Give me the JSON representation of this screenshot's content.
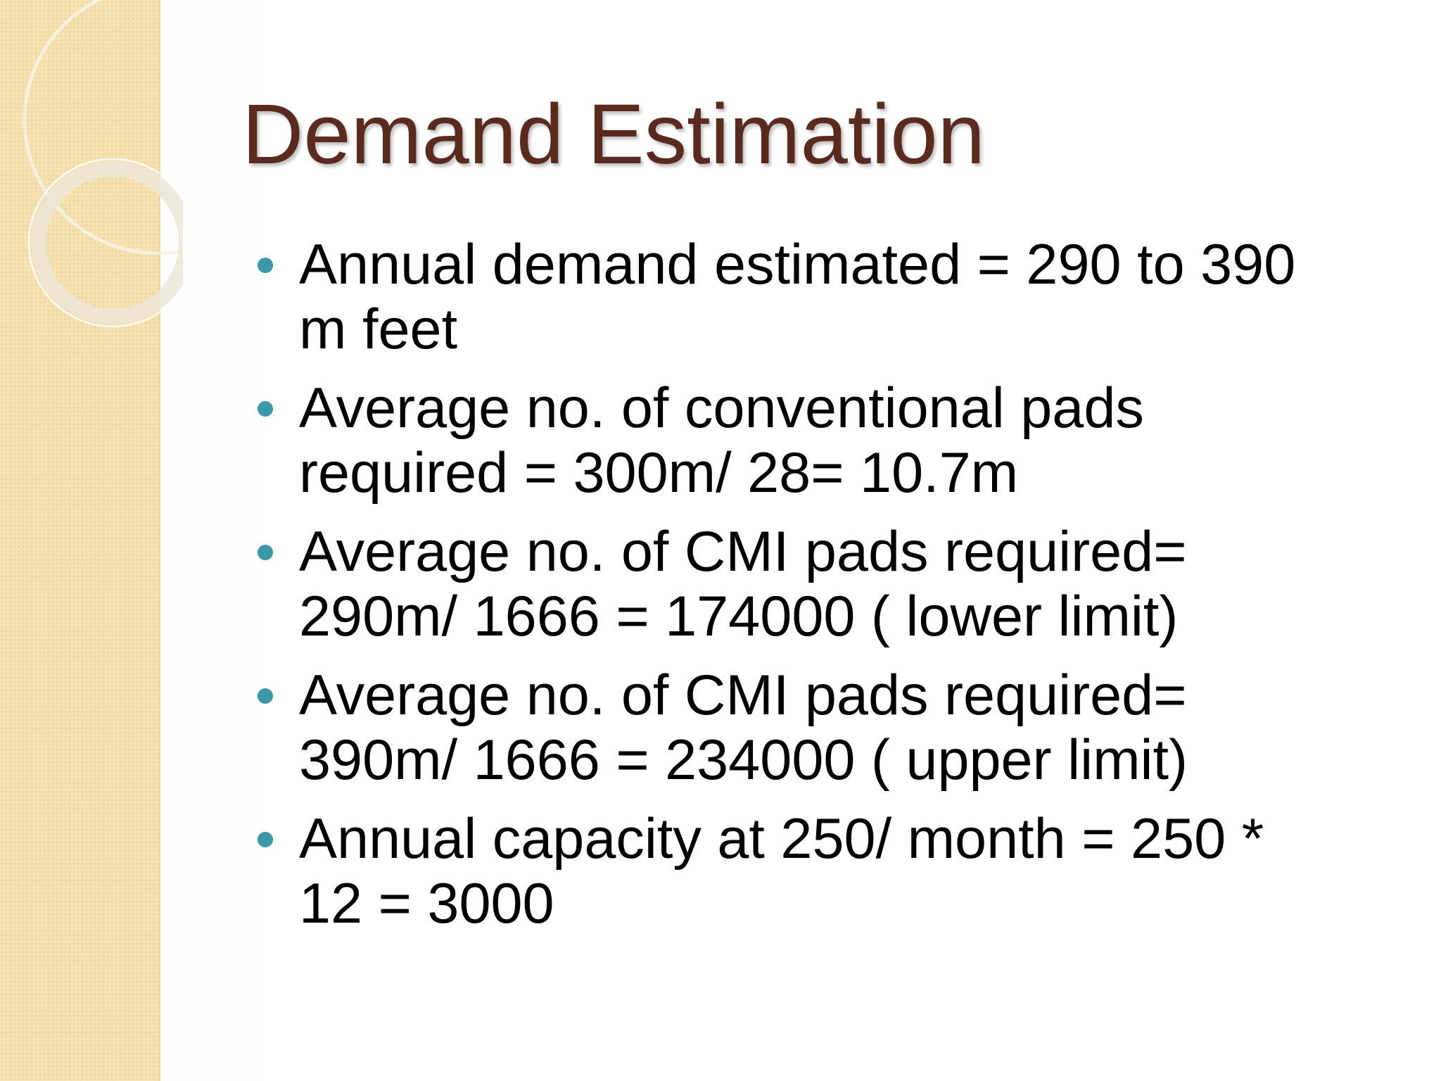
{
  "slide": {
    "title": "Demand Estimation",
    "bullets": [
      [
        "Annual demand estimated = 290 to 390",
        "m feet"
      ],
      [
        "Average no. of conventional pads",
        "required = 300m/ 28= 10.7m"
      ],
      [
        "Average no. of CMI pads required=",
        "290m/ 1666 = 174000 ( lower limit)"
      ],
      [
        "Average no. of CMI pads required=",
        "390m/ 1666 = 234000 ( upper limit)"
      ],
      [
        "Annual capacity at 250/ month = 250 *",
        "12 = 3000"
      ]
    ]
  }
}
